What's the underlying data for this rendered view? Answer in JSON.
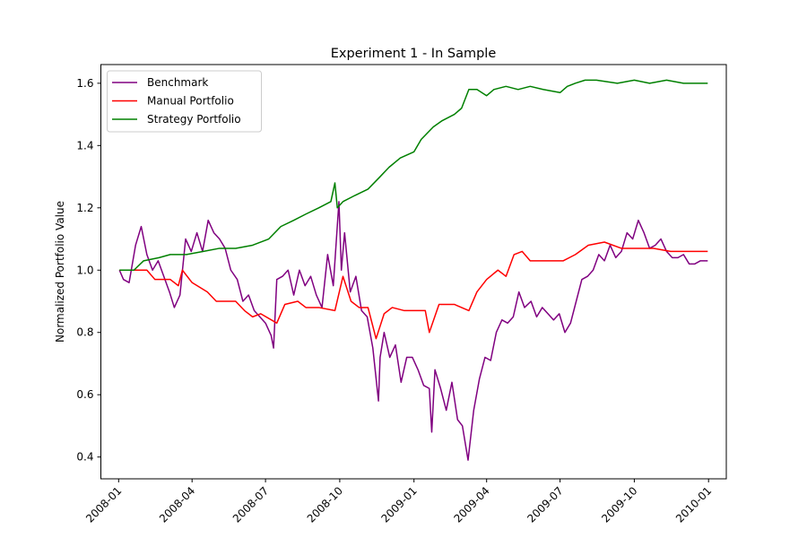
{
  "chart_data": {
    "type": "line",
    "title": "Experiment 1 - In Sample",
    "xlabel": "",
    "ylabel": "Normalized Portfolio Value",
    "xlim": [
      "2007-12-10",
      "2010-01-23"
    ],
    "ylim": [
      0.33,
      1.66
    ],
    "xticks": [
      "2008-01",
      "2008-04",
      "2008-07",
      "2008-10",
      "2009-01",
      "2009-04",
      "2009-07",
      "2009-10",
      "2010-01"
    ],
    "yticks": [
      0.4,
      0.6,
      0.8,
      1.0,
      1.2,
      1.4,
      1.6
    ],
    "grid": false,
    "legend_position": "upper-left",
    "series": [
      {
        "name": "Benchmark",
        "color": "#800080",
        "x": [
          "2008-01-02",
          "2008-01-07",
          "2008-01-14",
          "2008-01-22",
          "2008-01-29",
          "2008-02-05",
          "2008-02-12",
          "2008-02-19",
          "2008-02-26",
          "2008-03-04",
          "2008-03-10",
          "2008-03-17",
          "2008-03-24",
          "2008-03-31",
          "2008-04-07",
          "2008-04-14",
          "2008-04-21",
          "2008-04-28",
          "2008-05-05",
          "2008-05-12",
          "2008-05-19",
          "2008-05-27",
          "2008-06-03",
          "2008-06-10",
          "2008-06-17",
          "2008-06-24",
          "2008-07-01",
          "2008-07-08",
          "2008-07-11",
          "2008-07-15",
          "2008-07-22",
          "2008-07-29",
          "2008-08-05",
          "2008-08-12",
          "2008-08-19",
          "2008-08-26",
          "2008-09-02",
          "2008-09-09",
          "2008-09-16",
          "2008-09-23",
          "2008-09-30",
          "2008-10-03",
          "2008-10-07",
          "2008-10-14",
          "2008-10-21",
          "2008-10-28",
          "2008-11-04",
          "2008-11-11",
          "2008-11-18",
          "2008-11-20",
          "2008-11-25",
          "2008-12-02",
          "2008-12-09",
          "2008-12-16",
          "2008-12-23",
          "2008-12-30",
          "2009-01-06",
          "2009-01-13",
          "2009-01-20",
          "2009-01-23",
          "2009-01-27",
          "2009-02-03",
          "2009-02-10",
          "2009-02-17",
          "2009-02-24",
          "2009-03-02",
          "2009-03-09",
          "2009-03-16",
          "2009-03-23",
          "2009-03-30",
          "2009-04-06",
          "2009-04-13",
          "2009-04-20",
          "2009-04-27",
          "2009-05-04",
          "2009-05-11",
          "2009-05-18",
          "2009-05-26",
          "2009-06-02",
          "2009-06-09",
          "2009-06-16",
          "2009-06-23",
          "2009-06-30",
          "2009-07-07",
          "2009-07-14",
          "2009-07-21",
          "2009-07-28",
          "2009-08-04",
          "2009-08-11",
          "2009-08-18",
          "2009-08-25",
          "2009-09-01",
          "2009-09-08",
          "2009-09-15",
          "2009-09-22",
          "2009-09-29",
          "2009-10-06",
          "2009-10-13",
          "2009-10-20",
          "2009-10-27",
          "2009-11-03",
          "2009-11-10",
          "2009-11-17",
          "2009-11-24",
          "2009-12-01",
          "2009-12-08",
          "2009-12-15",
          "2009-12-22",
          "2009-12-31"
        ],
        "values": [
          1.0,
          0.97,
          0.96,
          1.08,
          1.14,
          1.05,
          1.0,
          1.03,
          0.98,
          0.93,
          0.88,
          0.92,
          1.1,
          1.06,
          1.12,
          1.06,
          1.16,
          1.12,
          1.1,
          1.07,
          1.0,
          0.97,
          0.9,
          0.92,
          0.87,
          0.85,
          0.83,
          0.79,
          0.75,
          0.97,
          0.98,
          1.0,
          0.92,
          1.0,
          0.95,
          0.98,
          0.92,
          0.88,
          1.05,
          0.95,
          1.22,
          1.0,
          1.12,
          0.93,
          0.98,
          0.87,
          0.85,
          0.75,
          0.58,
          0.72,
          0.8,
          0.72,
          0.76,
          0.64,
          0.72,
          0.72,
          0.68,
          0.63,
          0.62,
          0.48,
          0.68,
          0.62,
          0.55,
          0.64,
          0.52,
          0.5,
          0.39,
          0.55,
          0.65,
          0.72,
          0.71,
          0.8,
          0.84,
          0.83,
          0.85,
          0.93,
          0.88,
          0.9,
          0.85,
          0.88,
          0.86,
          0.84,
          0.86,
          0.8,
          0.83,
          0.9,
          0.97,
          0.98,
          1.0,
          1.05,
          1.03,
          1.08,
          1.04,
          1.06,
          1.12,
          1.1,
          1.16,
          1.12,
          1.07,
          1.08,
          1.1,
          1.06,
          1.04,
          1.04,
          1.05,
          1.02,
          1.02,
          1.03,
          1.03
        ]
      },
      {
        "name": "Manual Portfolio",
        "color": "#ff0000",
        "x": [
          "2008-01-02",
          "2008-02-05",
          "2008-02-15",
          "2008-03-05",
          "2008-03-15",
          "2008-03-20",
          "2008-04-01",
          "2008-04-20",
          "2008-05-01",
          "2008-05-25",
          "2008-06-05",
          "2008-06-15",
          "2008-06-25",
          "2008-07-15",
          "2008-07-25",
          "2008-08-10",
          "2008-08-20",
          "2008-09-05",
          "2008-09-25",
          "2008-10-05",
          "2008-10-15",
          "2008-10-25",
          "2008-11-05",
          "2008-11-15",
          "2008-11-25",
          "2008-12-05",
          "2008-12-20",
          "2009-01-05",
          "2009-01-15",
          "2009-01-20",
          "2009-02-01",
          "2009-02-20",
          "2009-03-10",
          "2009-03-20",
          "2009-04-01",
          "2009-04-15",
          "2009-04-25",
          "2009-05-05",
          "2009-05-15",
          "2009-05-25",
          "2009-06-15",
          "2009-07-05",
          "2009-07-20",
          "2009-08-05",
          "2009-08-25",
          "2009-09-15",
          "2009-10-05",
          "2009-10-25",
          "2009-11-15",
          "2009-12-31"
        ],
        "values": [
          1.0,
          1.0,
          0.97,
          0.97,
          0.95,
          1.0,
          0.96,
          0.93,
          0.9,
          0.9,
          0.87,
          0.85,
          0.86,
          0.83,
          0.89,
          0.9,
          0.88,
          0.88,
          0.87,
          0.98,
          0.9,
          0.88,
          0.88,
          0.78,
          0.86,
          0.88,
          0.87,
          0.87,
          0.87,
          0.8,
          0.89,
          0.89,
          0.87,
          0.93,
          0.97,
          1.0,
          0.98,
          1.05,
          1.06,
          1.03,
          1.03,
          1.03,
          1.05,
          1.08,
          1.09,
          1.07,
          1.07,
          1.07,
          1.06,
          1.06
        ]
      },
      {
        "name": "Strategy Portfolio",
        "color": "#008000",
        "x": [
          "2008-01-02",
          "2008-01-20",
          "2008-02-01",
          "2008-02-20",
          "2008-03-05",
          "2008-03-25",
          "2008-04-15",
          "2008-05-05",
          "2008-05-25",
          "2008-06-15",
          "2008-07-05",
          "2008-07-20",
          "2008-08-05",
          "2008-08-20",
          "2008-09-05",
          "2008-09-20",
          "2008-09-25",
          "2008-09-28",
          "2008-10-05",
          "2008-10-20",
          "2008-11-05",
          "2008-11-20",
          "2008-12-01",
          "2008-12-15",
          "2009-01-01",
          "2009-01-10",
          "2009-01-25",
          "2009-02-05",
          "2009-02-20",
          "2009-03-01",
          "2009-03-10",
          "2009-03-20",
          "2009-04-01",
          "2009-04-10",
          "2009-04-25",
          "2009-05-10",
          "2009-05-25",
          "2009-06-10",
          "2009-07-01",
          "2009-07-10",
          "2009-07-20",
          "2009-08-01",
          "2009-08-15",
          "2009-09-10",
          "2009-10-01",
          "2009-10-20",
          "2009-11-10",
          "2009-12-01",
          "2009-12-31"
        ],
        "values": [
          1.0,
          1.0,
          1.03,
          1.04,
          1.05,
          1.05,
          1.06,
          1.07,
          1.07,
          1.08,
          1.1,
          1.14,
          1.16,
          1.18,
          1.2,
          1.22,
          1.28,
          1.2,
          1.22,
          1.24,
          1.26,
          1.3,
          1.33,
          1.36,
          1.38,
          1.42,
          1.46,
          1.48,
          1.5,
          1.52,
          1.58,
          1.58,
          1.56,
          1.58,
          1.59,
          1.58,
          1.59,
          1.58,
          1.57,
          1.59,
          1.6,
          1.61,
          1.61,
          1.6,
          1.61,
          1.6,
          1.61,
          1.6,
          1.6
        ]
      }
    ]
  }
}
